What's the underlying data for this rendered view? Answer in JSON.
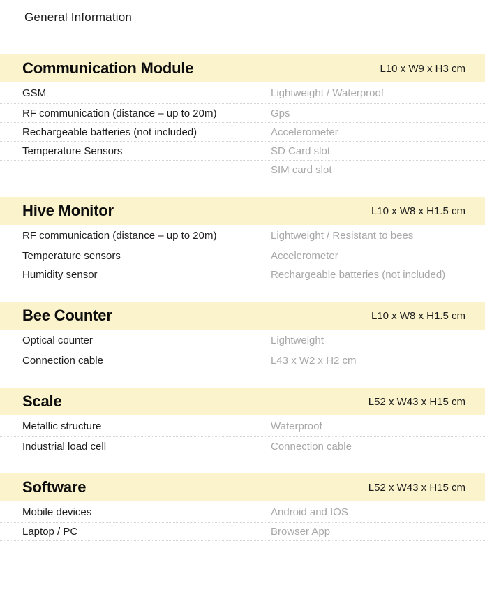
{
  "page": {
    "title": "General Information"
  },
  "colors": {
    "section_band": "#faf3cb",
    "label_text": "#1e1e1e",
    "value_text": "#a8a8a8",
    "divider": "#d4d4d4"
  },
  "sections": [
    {
      "title": "Communication Module",
      "dimensions": "L10 x W9 x H3 cm",
      "rows": [
        {
          "left": "GSM",
          "right": "Lightweight / Waterproof"
        },
        {
          "left": "RF communication (distance – up to 20m)",
          "right": "Gps"
        },
        {
          "left": "Rechargeable batteries (not included)",
          "right": "Accelerometer"
        },
        {
          "left": "Temperature Sensors",
          "right": "SD Card slot"
        },
        {
          "left": "",
          "right": "SIM card slot"
        }
      ]
    },
    {
      "title": "Hive Monitor",
      "dimensions": "L10 x W8 x H1.5 cm",
      "rows": [
        {
          "left": "RF communication (distance – up to 20m)",
          "right": "Lightweight / Resistant to bees"
        },
        {
          "left": "Temperature sensors",
          "right": "Accelerometer"
        },
        {
          "left": "Humidity sensor",
          "right": "Rechargeable batteries (not included)"
        }
      ]
    },
    {
      "title": "Bee Counter",
      "dimensions": "L10 x W8 x H1.5 cm",
      "rows": [
        {
          "left": "Optical counter",
          "right": "Lightweight"
        },
        {
          "left": "Connection cable",
          "right": "L43 x W2 x H2 cm"
        }
      ]
    },
    {
      "title": "Scale",
      "dimensions": "L52 x W43 x H15 cm",
      "rows": [
        {
          "left": "Metallic structure",
          "right": "Waterproof"
        },
        {
          "left": "Industrial load cell",
          "right": "Connection cable"
        }
      ]
    },
    {
      "title": "Software",
      "dimensions": "L52 x W43 x H15 cm",
      "rows": [
        {
          "left": "Mobile devices",
          "right": "Android and IOS"
        },
        {
          "left": "Laptop / PC",
          "right": "Browser App"
        }
      ]
    }
  ]
}
